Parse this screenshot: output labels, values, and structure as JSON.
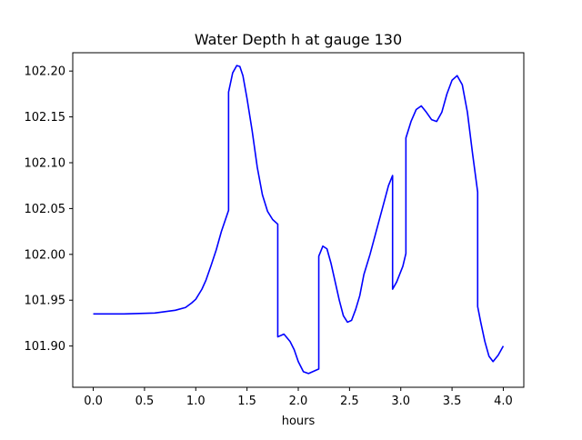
{
  "chart_data": {
    "type": "line",
    "title": "Water Depth h at gauge 130",
    "xlabel": "hours",
    "ylabel": "",
    "xlim": [
      -0.2,
      4.2
    ],
    "ylim": [
      101.855,
      102.22
    ],
    "xticks": [
      0.0,
      0.5,
      1.0,
      1.5,
      2.0,
      2.5,
      3.0,
      3.5,
      4.0
    ],
    "xtick_labels": [
      "0.0",
      "0.5",
      "1.0",
      "1.5",
      "2.0",
      "2.5",
      "3.0",
      "3.5",
      "4.0"
    ],
    "yticks": [
      101.9,
      101.95,
      102.0,
      102.05,
      102.1,
      102.15,
      102.2
    ],
    "ytick_labels": [
      "101.90",
      "101.95",
      "102.00",
      "102.05",
      "102.10",
      "102.15",
      "102.20"
    ],
    "grid": false,
    "line_color": "#0000ff",
    "series": [
      {
        "x": [
          0.0,
          0.3,
          0.6,
          0.8,
          0.9,
          0.96,
          1.0,
          1.06,
          1.1,
          1.15,
          1.2,
          1.25,
          1.32,
          1.32,
          1.36,
          1.4,
          1.43,
          1.46,
          1.5,
          1.55,
          1.6,
          1.65,
          1.7,
          1.75,
          1.8,
          1.8,
          1.86,
          1.92,
          1.96,
          2.0,
          2.05,
          2.1,
          2.2,
          2.2,
          2.24,
          2.28,
          2.32,
          2.36,
          2.4,
          2.44,
          2.48,
          2.52,
          2.56,
          2.6,
          2.64,
          2.7,
          2.76,
          2.82,
          2.88,
          2.92,
          2.92,
          2.96,
          3.02,
          3.05,
          3.05,
          3.1,
          3.15,
          3.2,
          3.25,
          3.3,
          3.35,
          3.4,
          3.45,
          3.5,
          3.55,
          3.6,
          3.65,
          3.7,
          3.75,
          3.75,
          3.78,
          3.82,
          3.86,
          3.9,
          3.95,
          4.0
        ],
        "y": [
          101.935,
          101.935,
          101.936,
          101.939,
          101.942,
          101.947,
          101.951,
          101.962,
          101.972,
          101.988,
          102.005,
          102.025,
          102.048,
          102.177,
          102.198,
          102.206,
          102.205,
          102.195,
          102.17,
          102.135,
          102.095,
          102.065,
          102.047,
          102.038,
          102.033,
          101.91,
          101.913,
          101.905,
          101.896,
          101.883,
          101.872,
          101.87,
          101.875,
          101.998,
          102.009,
          102.006,
          101.99,
          101.97,
          101.95,
          101.933,
          101.926,
          101.928,
          101.94,
          101.955,
          101.978,
          102.0,
          102.025,
          102.05,
          102.075,
          102.086,
          101.962,
          101.97,
          101.987,
          102.001,
          102.127,
          102.145,
          102.158,
          102.162,
          102.155,
          102.147,
          102.145,
          102.155,
          102.175,
          102.19,
          102.195,
          102.185,
          102.155,
          102.11,
          102.068,
          101.943,
          101.926,
          101.905,
          101.889,
          101.883,
          101.89,
          101.9
        ]
      }
    ]
  }
}
